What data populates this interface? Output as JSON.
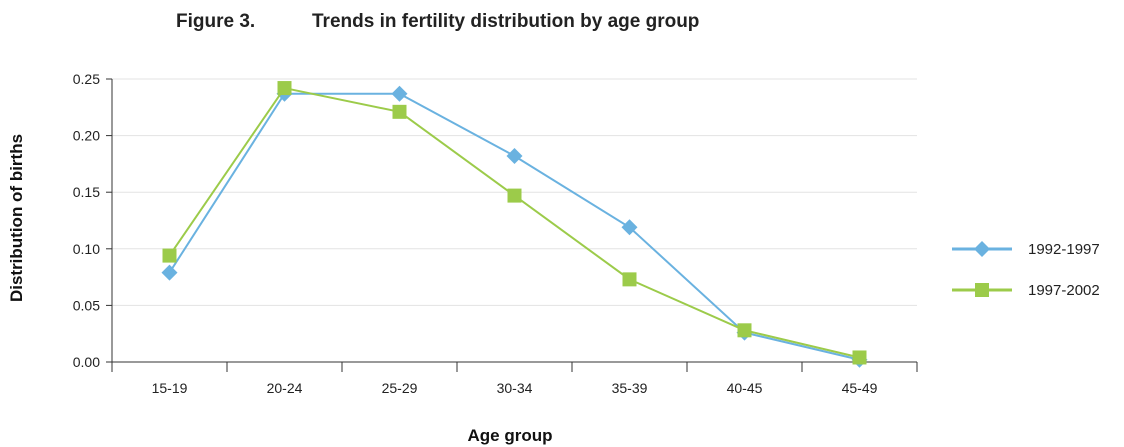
{
  "figure": {
    "label": "Figure 3.",
    "title": "Trends in fertility distribution by age group"
  },
  "chart_data": {
    "type": "line",
    "categories": [
      "15-19",
      "20-24",
      "25-29",
      "30-34",
      "35-39",
      "40-45",
      "45-49"
    ],
    "xlabel": "Age group",
    "ylabel": "Distribution of births",
    "ylim": [
      0,
      0.25
    ],
    "yticks": [
      "0.00",
      "0.05",
      "0.10",
      "0.15",
      "0.20",
      "0.25"
    ],
    "grid": true,
    "legend_position": "right",
    "series": [
      {
        "name": "1992-1997",
        "marker": "diamond",
        "color": "#6AB2E0",
        "values": [
          0.079,
          0.237,
          0.237,
          0.182,
          0.119,
          0.026,
          0.002
        ]
      },
      {
        "name": "1997-2002",
        "marker": "square",
        "color": "#9CCB4A",
        "values": [
          0.094,
          0.242,
          0.221,
          0.147,
          0.073,
          0.028,
          0.004
        ]
      }
    ]
  }
}
